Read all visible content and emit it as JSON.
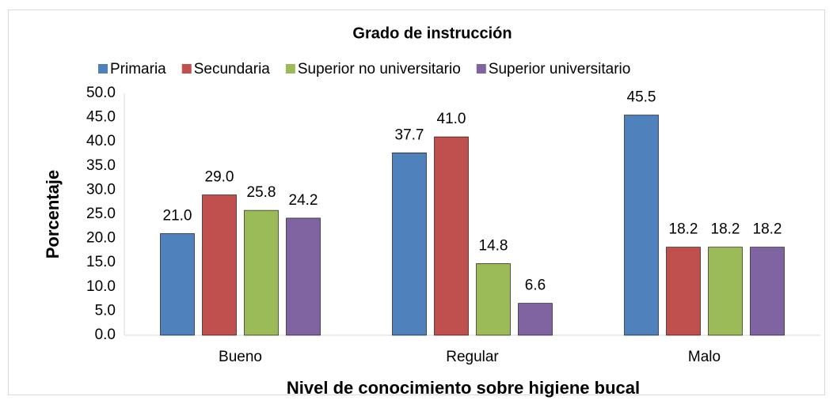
{
  "chart_data": {
    "type": "bar",
    "title": "Grado de instrucción",
    "x_label": "Nivel de conocimiento sobre higiene bucal",
    "y_label": "Porcentaje",
    "categories": [
      "Bueno",
      "Regular",
      "Malo"
    ],
    "series": [
      {
        "name": "Primaria",
        "color": "#4f81bd",
        "values": [
          21.0,
          37.7,
          45.5
        ],
        "value_labels": [
          "21.0",
          "37.7",
          "45.5"
        ]
      },
      {
        "name": "Secundaria",
        "color": "#c0504d",
        "values": [
          29.0,
          41.0,
          18.2
        ],
        "value_labels": [
          "29.0",
          "41.0",
          "18.2"
        ]
      },
      {
        "name": "Superior no universitario",
        "color": "#9bbb59",
        "values": [
          25.8,
          14.8,
          18.2
        ],
        "value_labels": [
          "25.8",
          "14.8",
          "18.2"
        ]
      },
      {
        "name": "Superior universitario",
        "color": "#8064a2",
        "values": [
          24.2,
          6.6,
          18.2
        ],
        "value_labels": [
          "24.2",
          "6.6",
          "18.2"
        ]
      }
    ],
    "ylim": [
      0,
      50
    ],
    "yticks": [
      {
        "value": 0,
        "label": "0.0"
      },
      {
        "value": 5,
        "label": "5.0"
      },
      {
        "value": 10,
        "label": "10.0"
      },
      {
        "value": 15,
        "label": "15.0"
      },
      {
        "value": 20,
        "label": "20.0"
      },
      {
        "value": 25,
        "label": "25.0"
      },
      {
        "value": 30,
        "label": "30.0"
      },
      {
        "value": 35,
        "label": "35.0"
      },
      {
        "value": 40,
        "label": "40.0"
      },
      {
        "value": 45,
        "label": "45.0"
      },
      {
        "value": 50,
        "label": "50.0"
      }
    ],
    "grid": false,
    "legend": "top"
  }
}
